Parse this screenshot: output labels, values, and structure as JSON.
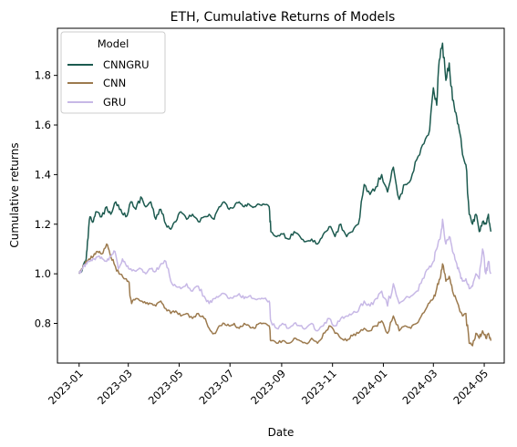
{
  "chart_data": {
    "type": "line",
    "title": "ETH, Cumulative Returns of Models",
    "xlabel": "Date",
    "ylabel": "Cumulative returns",
    "x_ticks": [
      "2023-01",
      "2023-03",
      "2023-05",
      "2023-07",
      "2023-09",
      "2023-11",
      "2024-01",
      "2024-03",
      "2024-05"
    ],
    "y_ticks": [
      "0.8",
      "1.0",
      "1.2",
      "1.4",
      "1.6",
      "1.8"
    ],
    "xlim": [
      "2022-12-06",
      "2024-05-25"
    ],
    "ylim": [
      0.64,
      1.99
    ],
    "grid": false,
    "legend": {
      "title": "Model",
      "position": "top-left"
    },
    "series": [
      {
        "name": "CNNGRU",
        "color": "#1c5a4f",
        "points": [
          [
            "2023-01-01",
            1.0
          ],
          [
            "2023-01-05",
            1.02
          ],
          [
            "2023-01-09",
            1.05
          ],
          [
            "2023-01-11",
            1.13
          ],
          [
            "2023-01-14",
            1.23
          ],
          [
            "2023-01-18",
            1.21
          ],
          [
            "2023-01-22",
            1.25
          ],
          [
            "2023-01-28",
            1.23
          ],
          [
            "2023-02-03",
            1.27
          ],
          [
            "2023-02-08",
            1.24
          ],
          [
            "2023-02-14",
            1.29
          ],
          [
            "2023-02-20",
            1.26
          ],
          [
            "2023-02-26",
            1.23
          ],
          [
            "2023-03-04",
            1.29
          ],
          [
            "2023-03-10",
            1.26
          ],
          [
            "2023-03-16",
            1.31
          ],
          [
            "2023-03-22",
            1.27
          ],
          [
            "2023-03-28",
            1.29
          ],
          [
            "2023-04-03",
            1.22
          ],
          [
            "2023-04-09",
            1.26
          ],
          [
            "2023-04-15",
            1.2
          ],
          [
            "2023-04-21",
            1.18
          ],
          [
            "2023-04-27",
            1.21
          ],
          [
            "2023-05-03",
            1.25
          ],
          [
            "2023-05-10",
            1.22
          ],
          [
            "2023-05-17",
            1.24
          ],
          [
            "2023-05-24",
            1.21
          ],
          [
            "2023-05-31",
            1.23
          ],
          [
            "2023-06-06",
            1.24
          ],
          [
            "2023-06-12",
            1.22
          ],
          [
            "2023-06-18",
            1.27
          ],
          [
            "2023-06-24",
            1.29
          ],
          [
            "2023-06-30",
            1.26
          ],
          [
            "2023-07-06",
            1.27
          ],
          [
            "2023-07-12",
            1.29
          ],
          [
            "2023-07-18",
            1.27
          ],
          [
            "2023-07-24",
            1.28
          ],
          [
            "2023-07-30",
            1.27
          ],
          [
            "2023-08-05",
            1.28
          ],
          [
            "2023-08-11",
            1.28
          ],
          [
            "2023-08-17",
            1.27
          ],
          [
            "2023-08-19",
            1.17
          ],
          [
            "2023-08-26",
            1.15
          ],
          [
            "2023-09-02",
            1.16
          ],
          [
            "2023-09-09",
            1.14
          ],
          [
            "2023-09-16",
            1.17
          ],
          [
            "2023-09-23",
            1.15
          ],
          [
            "2023-09-30",
            1.13
          ],
          [
            "2023-10-07",
            1.14
          ],
          [
            "2023-10-14",
            1.12
          ],
          [
            "2023-10-21",
            1.16
          ],
          [
            "2023-10-28",
            1.19
          ],
          [
            "2023-11-04",
            1.15
          ],
          [
            "2023-11-11",
            1.2
          ],
          [
            "2023-11-18",
            1.15
          ],
          [
            "2023-11-25",
            1.17
          ],
          [
            "2023-12-02",
            1.2
          ],
          [
            "2023-12-09",
            1.36
          ],
          [
            "2023-12-16",
            1.32
          ],
          [
            "2023-12-23",
            1.35
          ],
          [
            "2023-12-30",
            1.4
          ],
          [
            "2024-01-06",
            1.33
          ],
          [
            "2024-01-13",
            1.43
          ],
          [
            "2024-01-20",
            1.3
          ],
          [
            "2024-01-27",
            1.36
          ],
          [
            "2024-02-03",
            1.38
          ],
          [
            "2024-02-10",
            1.46
          ],
          [
            "2024-02-17",
            1.52
          ],
          [
            "2024-02-24",
            1.56
          ],
          [
            "2024-03-01",
            1.75
          ],
          [
            "2024-03-05",
            1.68
          ],
          [
            "2024-03-08",
            1.86
          ],
          [
            "2024-03-12",
            1.93
          ],
          [
            "2024-03-16",
            1.78
          ],
          [
            "2024-03-20",
            1.85
          ],
          [
            "2024-03-24",
            1.7
          ],
          [
            "2024-03-28",
            1.65
          ],
          [
            "2024-04-01",
            1.58
          ],
          [
            "2024-04-05",
            1.48
          ],
          [
            "2024-04-09",
            1.44
          ],
          [
            "2024-04-13",
            1.24
          ],
          [
            "2024-04-17",
            1.2
          ],
          [
            "2024-04-21",
            1.24
          ],
          [
            "2024-04-25",
            1.17
          ],
          [
            "2024-04-29",
            1.21
          ],
          [
            "2024-05-03",
            1.2
          ],
          [
            "2024-05-06",
            1.24
          ],
          [
            "2024-05-09",
            1.17
          ]
        ]
      },
      {
        "name": "CNN",
        "color": "#9c7a4e",
        "points": [
          [
            "2023-01-01",
            1.0
          ],
          [
            "2023-01-05",
            1.02
          ],
          [
            "2023-01-09",
            1.05
          ],
          [
            "2023-01-13",
            1.06
          ],
          [
            "2023-01-18",
            1.07
          ],
          [
            "2023-01-23",
            1.09
          ],
          [
            "2023-01-28",
            1.08
          ],
          [
            "2023-02-03",
            1.12
          ],
          [
            "2023-02-07",
            1.08
          ],
          [
            "2023-02-12",
            1.04
          ],
          [
            "2023-02-18",
            1.0
          ],
          [
            "2023-02-24",
            0.98
          ],
          [
            "2023-03-01",
            0.97
          ],
          [
            "2023-03-05",
            0.88
          ],
          [
            "2023-03-10",
            0.9
          ],
          [
            "2023-03-16",
            0.89
          ],
          [
            "2023-03-22",
            0.88
          ],
          [
            "2023-03-28",
            0.88
          ],
          [
            "2023-04-03",
            0.87
          ],
          [
            "2023-04-09",
            0.89
          ],
          [
            "2023-04-15",
            0.86
          ],
          [
            "2023-04-21",
            0.84
          ],
          [
            "2023-04-27",
            0.85
          ],
          [
            "2023-05-03",
            0.83
          ],
          [
            "2023-05-10",
            0.84
          ],
          [
            "2023-05-17",
            0.82
          ],
          [
            "2023-05-24",
            0.84
          ],
          [
            "2023-05-31",
            0.82
          ],
          [
            "2023-06-06",
            0.78
          ],
          [
            "2023-06-12",
            0.76
          ],
          [
            "2023-06-18",
            0.79
          ],
          [
            "2023-06-24",
            0.8
          ],
          [
            "2023-06-30",
            0.79
          ],
          [
            "2023-07-06",
            0.8
          ],
          [
            "2023-07-12",
            0.78
          ],
          [
            "2023-07-18",
            0.8
          ],
          [
            "2023-07-24",
            0.79
          ],
          [
            "2023-07-30",
            0.78
          ],
          [
            "2023-08-05",
            0.8
          ],
          [
            "2023-08-11",
            0.8
          ],
          [
            "2023-08-17",
            0.79
          ],
          [
            "2023-08-19",
            0.73
          ],
          [
            "2023-08-26",
            0.72
          ],
          [
            "2023-09-02",
            0.73
          ],
          [
            "2023-09-09",
            0.72
          ],
          [
            "2023-09-16",
            0.74
          ],
          [
            "2023-09-23",
            0.73
          ],
          [
            "2023-09-30",
            0.72
          ],
          [
            "2023-10-07",
            0.74
          ],
          [
            "2023-10-14",
            0.72
          ],
          [
            "2023-10-21",
            0.76
          ],
          [
            "2023-10-28",
            0.79
          ],
          [
            "2023-11-04",
            0.76
          ],
          [
            "2023-11-11",
            0.74
          ],
          [
            "2023-11-18",
            0.73
          ],
          [
            "2023-11-25",
            0.75
          ],
          [
            "2023-12-02",
            0.76
          ],
          [
            "2023-12-09",
            0.78
          ],
          [
            "2023-12-16",
            0.77
          ],
          [
            "2023-12-23",
            0.79
          ],
          [
            "2023-12-30",
            0.81
          ],
          [
            "2024-01-06",
            0.76
          ],
          [
            "2024-01-13",
            0.83
          ],
          [
            "2024-01-20",
            0.77
          ],
          [
            "2024-01-27",
            0.79
          ],
          [
            "2024-02-03",
            0.78
          ],
          [
            "2024-02-10",
            0.8
          ],
          [
            "2024-02-17",
            0.84
          ],
          [
            "2024-02-24",
            0.88
          ],
          [
            "2024-03-01",
            0.9
          ],
          [
            "2024-03-05",
            0.94
          ],
          [
            "2024-03-09",
            0.98
          ],
          [
            "2024-03-12",
            1.04
          ],
          [
            "2024-03-16",
            0.97
          ],
          [
            "2024-03-20",
            0.99
          ],
          [
            "2024-03-24",
            0.93
          ],
          [
            "2024-03-28",
            0.9
          ],
          [
            "2024-04-01",
            0.86
          ],
          [
            "2024-04-05",
            0.83
          ],
          [
            "2024-04-09",
            0.84
          ],
          [
            "2024-04-13",
            0.72
          ],
          [
            "2024-04-17",
            0.71
          ],
          [
            "2024-04-21",
            0.76
          ],
          [
            "2024-04-25",
            0.74
          ],
          [
            "2024-04-29",
            0.77
          ],
          [
            "2024-05-03",
            0.74
          ],
          [
            "2024-05-06",
            0.76
          ],
          [
            "2024-05-09",
            0.73
          ]
        ]
      },
      {
        "name": "GRU",
        "color": "#c7b8e6",
        "points": [
          [
            "2023-01-01",
            1.0
          ],
          [
            "2023-01-05",
            1.02
          ],
          [
            "2023-01-09",
            1.04
          ],
          [
            "2023-01-14",
            1.05
          ],
          [
            "2023-01-19",
            1.06
          ],
          [
            "2023-01-24",
            1.07
          ],
          [
            "2023-01-29",
            1.06
          ],
          [
            "2023-02-03",
            1.05
          ],
          [
            "2023-02-08",
            1.07
          ],
          [
            "2023-02-13",
            1.09
          ],
          [
            "2023-02-17",
            1.02
          ],
          [
            "2023-02-22",
            1.06
          ],
          [
            "2023-02-27",
            1.03
          ],
          [
            "2023-03-04",
            1.02
          ],
          [
            "2023-03-10",
            1.01
          ],
          [
            "2023-03-16",
            1.02
          ],
          [
            "2023-03-22",
            1.0
          ],
          [
            "2023-03-28",
            1.02
          ],
          [
            "2023-04-03",
            1.01
          ],
          [
            "2023-04-09",
            1.04
          ],
          [
            "2023-04-15",
            1.05
          ],
          [
            "2023-04-21",
            0.97
          ],
          [
            "2023-04-27",
            0.95
          ],
          [
            "2023-05-03",
            0.94
          ],
          [
            "2023-05-10",
            0.96
          ],
          [
            "2023-05-17",
            0.93
          ],
          [
            "2023-05-24",
            0.95
          ],
          [
            "2023-05-31",
            0.91
          ],
          [
            "2023-06-06",
            0.88
          ],
          [
            "2023-06-12",
            0.9
          ],
          [
            "2023-06-18",
            0.91
          ],
          [
            "2023-06-24",
            0.92
          ],
          [
            "2023-06-30",
            0.9
          ],
          [
            "2023-07-06",
            0.91
          ],
          [
            "2023-07-12",
            0.92
          ],
          [
            "2023-07-18",
            0.9
          ],
          [
            "2023-07-24",
            0.91
          ],
          [
            "2023-07-30",
            0.9
          ],
          [
            "2023-08-05",
            0.9
          ],
          [
            "2023-08-11",
            0.9
          ],
          [
            "2023-08-17",
            0.89
          ],
          [
            "2023-08-19",
            0.81
          ],
          [
            "2023-08-26",
            0.78
          ],
          [
            "2023-09-02",
            0.8
          ],
          [
            "2023-09-09",
            0.78
          ],
          [
            "2023-09-16",
            0.8
          ],
          [
            "2023-09-23",
            0.79
          ],
          [
            "2023-09-30",
            0.78
          ],
          [
            "2023-10-07",
            0.8
          ],
          [
            "2023-10-14",
            0.77
          ],
          [
            "2023-10-21",
            0.79
          ],
          [
            "2023-10-28",
            0.82
          ],
          [
            "2023-11-04",
            0.79
          ],
          [
            "2023-11-11",
            0.82
          ],
          [
            "2023-11-18",
            0.83
          ],
          [
            "2023-11-25",
            0.84
          ],
          [
            "2023-12-02",
            0.85
          ],
          [
            "2023-12-09",
            0.89
          ],
          [
            "2023-12-16",
            0.87
          ],
          [
            "2023-12-23",
            0.9
          ],
          [
            "2023-12-30",
            0.93
          ],
          [
            "2024-01-06",
            0.87
          ],
          [
            "2024-01-13",
            0.96
          ],
          [
            "2024-01-20",
            0.88
          ],
          [
            "2024-01-27",
            0.9
          ],
          [
            "2024-02-03",
            0.91
          ],
          [
            "2024-02-10",
            0.93
          ],
          [
            "2024-02-17",
            0.98
          ],
          [
            "2024-02-24",
            1.02
          ],
          [
            "2024-03-01",
            1.05
          ],
          [
            "2024-03-05",
            1.1
          ],
          [
            "2024-03-09",
            1.14
          ],
          [
            "2024-03-12",
            1.22
          ],
          [
            "2024-03-16",
            1.12
          ],
          [
            "2024-03-20",
            1.15
          ],
          [
            "2024-03-24",
            1.09
          ],
          [
            "2024-03-28",
            1.05
          ],
          [
            "2024-04-01",
            1.01
          ],
          [
            "2024-04-05",
            0.97
          ],
          [
            "2024-04-09",
            0.98
          ],
          [
            "2024-04-13",
            0.94
          ],
          [
            "2024-04-17",
            0.95
          ],
          [
            "2024-04-21",
            1.0
          ],
          [
            "2024-04-25",
            0.98
          ],
          [
            "2024-04-29",
            1.1
          ],
          [
            "2024-05-03",
            1.0
          ],
          [
            "2024-05-06",
            1.05
          ],
          [
            "2024-05-09",
            1.0
          ]
        ]
      }
    ]
  }
}
